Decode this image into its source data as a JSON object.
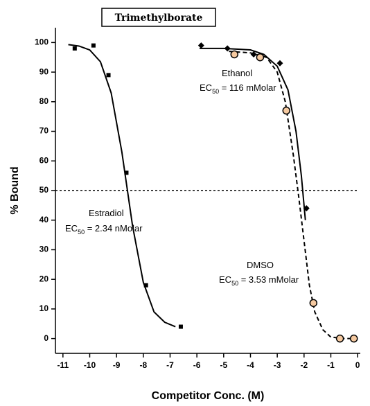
{
  "chart_data": {
    "type": "scatter",
    "title": "Trimethylborate",
    "x_label": "Competitor Conc. (M)",
    "y_label": "% Bound",
    "xlim": [
      -11.28,
      0.1
    ],
    "ylim": [
      -5,
      105
    ],
    "xticks": [
      -11,
      -10,
      -9,
      -8,
      -7,
      -6,
      -5,
      -4,
      -3,
      -2,
      -1,
      0
    ],
    "yticks": [
      0,
      10,
      20,
      30,
      40,
      50,
      60,
      70,
      80,
      90,
      100
    ],
    "reference_line": 50,
    "series": [
      {
        "name": "Estradiol",
        "ec_prefix": "EC",
        "ec_sub": "50",
        "ec_text": " = 2.34 nMolar",
        "marker": "square",
        "color": "#000000",
        "dash": false,
        "x": [
          -10.56,
          -9.86,
          -9.3,
          -8.63,
          -7.9,
          -6.6
        ],
        "values": [
          98,
          99,
          89,
          56,
          18,
          4
        ],
        "curve_x": [
          -10.8,
          -10.4,
          -10,
          -9.6,
          -9.2,
          -8.8,
          -8.4,
          -8,
          -7.6,
          -7.2,
          -6.8
        ],
        "curve_values": [
          99.3,
          98.8,
          97.5,
          93.5,
          83,
          63,
          38,
          19,
          9,
          5.5,
          4
        ]
      },
      {
        "name": "Ethanol",
        "ec_prefix": "EC",
        "ec_sub": "50",
        "ec_text": " = 116 mMolar",
        "marker": "diamond",
        "color": "#000000",
        "dash": false,
        "x": [
          -5.84,
          -4.86,
          -3.88,
          -2.9,
          -1.91
        ],
        "values": [
          99,
          98,
          96,
          93,
          44
        ],
        "curve_x": [
          -5.9,
          -5,
          -4,
          -3.5,
          -3,
          -2.6,
          -2.3,
          -2.1,
          -2,
          -1.95
        ],
        "curve_values": [
          98,
          98,
          97.5,
          96,
          92,
          84,
          70,
          55,
          45,
          40
        ]
      },
      {
        "name": "DMSO",
        "ec_prefix": "EC",
        "ec_sub": "50",
        "ec_text": " = 3.53 mMolar",
        "marker": "circle",
        "color": "#f5c9a0",
        "dash": true,
        "x": [
          -4.6,
          -3.64,
          -2.66,
          -1.65,
          -0.66,
          -0.14
        ],
        "values": [
          96,
          95,
          77,
          12,
          0,
          0
        ],
        "curve_x": [
          -4.8,
          -4,
          -3.4,
          -3,
          -2.7,
          -2.4,
          -2.2,
          -2,
          -1.8,
          -1.6,
          -1.3,
          -1,
          -0.5,
          -0.1
        ],
        "curve_values": [
          97,
          96.5,
          95,
          90,
          80,
          62,
          48,
          33,
          18,
          9,
          3,
          0.5,
          0,
          0
        ]
      }
    ]
  }
}
